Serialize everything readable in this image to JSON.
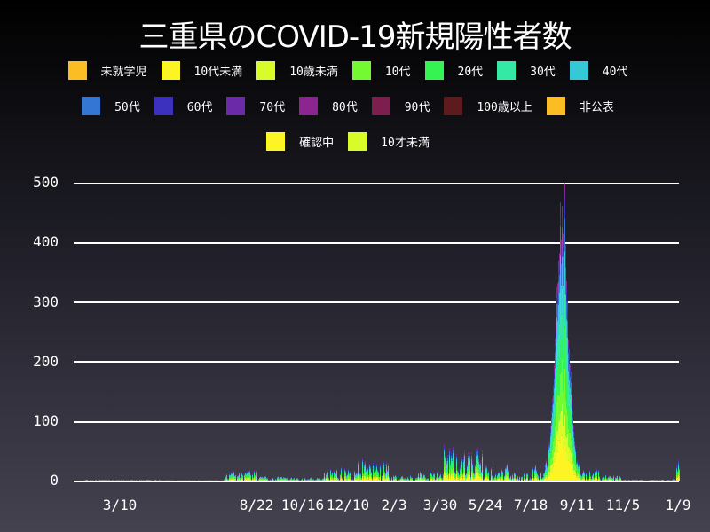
{
  "title": "三重県のCOVID-19新規陽性者数",
  "legend": {
    "row1": [
      {
        "label": "未就学児",
        "color": "#fbbd23"
      },
      {
        "label": "10代未満",
        "color": "#fdf423"
      },
      {
        "label": "10歳未満",
        "color": "#d8fb2a"
      },
      {
        "label": "10代",
        "color": "#75f930"
      },
      {
        "label": "20代",
        "color": "#34f352"
      },
      {
        "label": "30代",
        "color": "#34e9a6"
      },
      {
        "label": "40代",
        "color": "#35c9d8"
      }
    ],
    "row2": [
      {
        "label": "50代",
        "color": "#3476d3"
      },
      {
        "label": "60代",
        "color": "#3b31be"
      },
      {
        "label": "70代",
        "color": "#6b2aa7"
      },
      {
        "label": "80代",
        "color": "#8c258f"
      },
      {
        "label": "90代",
        "color": "#7c1f4e"
      },
      {
        "label": "100歳以上",
        "color": "#5e1b1e"
      },
      {
        "label": "非公表",
        "color": "#fbbd23"
      }
    ],
    "row3": [
      {
        "label": "確認中",
        "color": "#fdf423"
      },
      {
        "label": "10才未満",
        "color": "#d8fb2a"
      }
    ]
  },
  "axes": {
    "y_ticks": [
      "500",
      "400",
      "300",
      "200",
      "100",
      "0"
    ],
    "x_ticks": [
      "3/10",
      "8/22",
      "10/16",
      "12/10",
      "2/3",
      "3/30",
      "5/24",
      "7/18",
      "9/11",
      "11/5",
      "1/9"
    ]
  },
  "chart_data": {
    "type": "bar",
    "stacked": true,
    "title": "三重県のCOVID-19新規陽性者数",
    "xlabel": "",
    "ylabel": "",
    "ylim": [
      0,
      500
    ],
    "grid": true,
    "legend_position": "top",
    "x_tick_labels": [
      "3/10",
      "8/22",
      "10/16",
      "12/10",
      "2/3",
      "3/30",
      "5/24",
      "7/18",
      "9/11",
      "11/5",
      "1/9"
    ],
    "series_names": [
      "未就学児",
      "10代未満",
      "10歳未満",
      "10代",
      "20代",
      "30代",
      "40代",
      "50代",
      "60代",
      "70代",
      "80代",
      "90代",
      "100歳以上",
      "非公表",
      "確認中",
      "10才未満"
    ],
    "approx_daily_totals_by_period": [
      {
        "period": "3/10 - 8/22",
        "approx_max": 3
      },
      {
        "period": "8/22 - 10/16",
        "approx_max": 20
      },
      {
        "period": "10/16 - 12/10",
        "approx_max": 8
      },
      {
        "period": "12/10 - 2/3",
        "approx_max": 35
      },
      {
        "period": "2/3 - 3/30",
        "approx_max": 15
      },
      {
        "period": "3/30 - 5/24",
        "approx_max": 65
      },
      {
        "period": "5/24 - 7/18",
        "approx_max": 50
      },
      {
        "period": "7/18 - 9/11",
        "approx_max": 512
      },
      {
        "period": "9/11 - 11/5",
        "approx_max": 60
      },
      {
        "period": "11/5 - 1/9",
        "approx_max": 5
      },
      {
        "period": "1/9",
        "approx_max": 40
      }
    ],
    "peak": {
      "x": "around 9/1",
      "value": 512
    }
  }
}
